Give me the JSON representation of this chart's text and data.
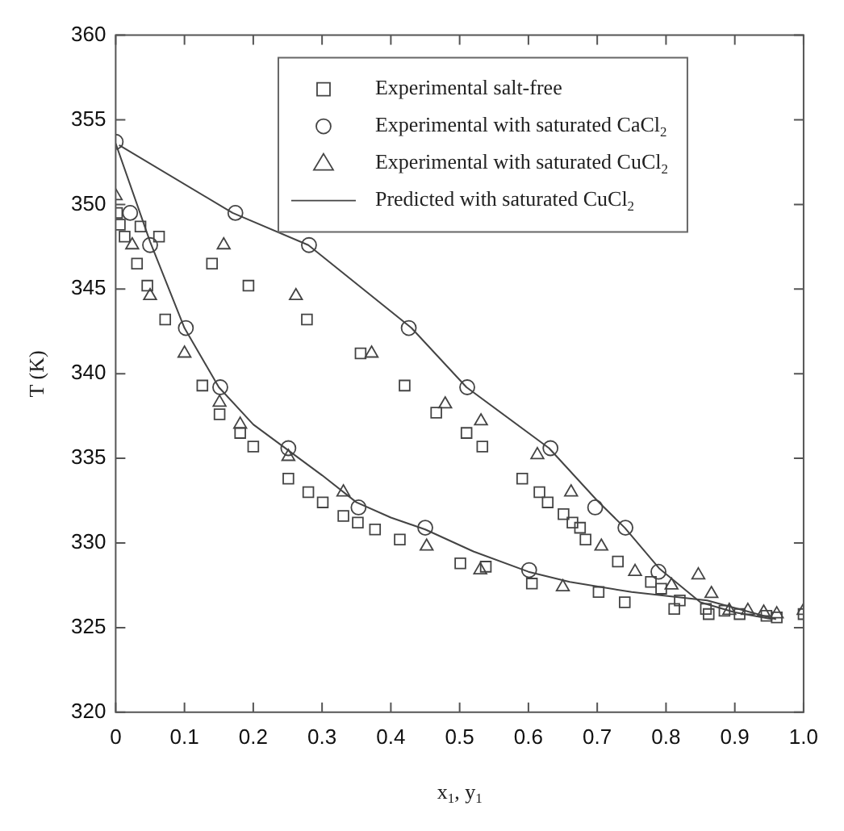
{
  "chart_data": {
    "type": "scatter",
    "xlabel": "x$_{1}$, y$_{1}$",
    "ylabel": "T (K)",
    "xlim": [
      0,
      1
    ],
    "ylim": [
      320,
      360
    ],
    "xticks": [
      0,
      {
        "value": 0.1,
        "label": "0.1"
      },
      {
        "value": 0.2,
        "label": "0.2"
      },
      {
        "value": 0.3,
        "label": "0.3"
      },
      {
        "value": 0.4,
        "label": "0.4"
      },
      {
        "value": 0.5,
        "label": "0.5"
      },
      {
        "value": 0.6,
        "label": "0.6"
      },
      {
        "value": 0.7,
        "label": "0.7"
      },
      {
        "value": 0.8,
        "label": "0.8"
      },
      {
        "value": 0.9,
        "label": "0.9"
      },
      {
        "value": 1,
        "label": "1.0"
      }
    ],
    "yticks": [
      320,
      325,
      330,
      335,
      340,
      345,
      350,
      355,
      360
    ],
    "grid": false,
    "legend": "top right",
    "series": [
      {
        "name": "Experimental salt-free",
        "type": "scatter",
        "marker": "square",
        "color": "#444444",
        "x": [
          0.002,
          0.006,
          0.013,
          0.031,
          0.036,
          0.046,
          0.063,
          0.072,
          0.126,
          0.14,
          0.151,
          0.181,
          0.193,
          0.2,
          0.251,
          0.278,
          0.28,
          0.301,
          0.331,
          0.352,
          0.356,
          0.377,
          0.413,
          0.42,
          0.466,
          0.501,
          0.51,
          0.533,
          0.538,
          0.591,
          0.605,
          0.616,
          0.628,
          0.651,
          0.664,
          0.675,
          0.683,
          0.702,
          0.73,
          0.74,
          0.778,
          0.793,
          0.812,
          0.82,
          0.858,
          0.862,
          0.885,
          0.907,
          0.946,
          0.961,
          1.0
        ],
        "values": [
          349.5,
          348.8,
          348.1,
          346.5,
          348.7,
          345.2,
          348.1,
          343.2,
          339.3,
          346.5,
          337.6,
          336.5,
          345.2,
          335.7,
          333.8,
          343.2,
          333.0,
          332.4,
          331.6,
          331.2,
          341.2,
          330.8,
          330.2,
          339.3,
          337.7,
          328.8,
          336.5,
          335.7,
          328.6,
          333.8,
          327.6,
          333.0,
          332.4,
          331.7,
          331.2,
          330.9,
          330.2,
          327.1,
          328.9,
          326.5,
          327.7,
          327.3,
          326.1,
          326.6,
          326.1,
          325.8,
          326.0,
          325.8,
          325.7,
          325.6,
          325.8
        ]
      },
      {
        "name": "Experimental with saturated CaCl$_{2}$",
        "type": "scatter",
        "marker": "circle",
        "color": "#444444",
        "x": [
          0,
          0.021,
          0.05,
          0.102,
          0.152,
          0.174,
          0.251,
          0.281,
          0.353,
          0.426,
          0.45,
          0.511,
          0.601,
          0.632,
          0.697,
          0.741,
          0.789
        ],
        "values": [
          353.7,
          349.5,
          347.6,
          342.7,
          339.2,
          349.5,
          335.6,
          347.6,
          332.1,
          342.7,
          330.9,
          339.2,
          328.4,
          335.6,
          332.1,
          330.9,
          328.3
        ]
      },
      {
        "name": "Experimental with saturated CuCl$_{2}$",
        "type": "scatter",
        "marker": "triangle",
        "color": "#444444",
        "x": [
          0,
          0.024,
          0.05,
          0.1,
          0.151,
          0.157,
          0.181,
          0.251,
          0.262,
          0.331,
          0.372,
          0.452,
          0.479,
          0.53,
          0.531,
          0.613,
          0.65,
          0.662,
          0.706,
          0.755,
          0.808,
          0.847,
          0.866,
          0.892,
          0.919,
          0.942,
          0.961,
          1.0
        ],
        "values": [
          350.5,
          347.6,
          344.6,
          341.2,
          338.3,
          347.6,
          337.0,
          335.1,
          344.6,
          333.0,
          341.2,
          329.8,
          338.2,
          328.4,
          337.2,
          335.2,
          327.4,
          333.0,
          329.8,
          328.3,
          327.5,
          328.1,
          327.0,
          326.0,
          326.0,
          325.9,
          325.8,
          326.0
        ]
      },
      {
        "name": "Predicted with saturated CuCl$_{2}$",
        "type": "line",
        "marker": "none",
        "line_style": "solid",
        "color": "#444444",
        "x": [
          0,
          0.05,
          0.1,
          0.15,
          0.2,
          0.25,
          0.3,
          0.35,
          0.4,
          0.45,
          0.52,
          0.6,
          0.66,
          0.75,
          0.86,
          0.96
        ],
        "values": [
          353.6,
          347.8,
          342.7,
          339.2,
          337.0,
          335.5,
          334.0,
          332.4,
          331.5,
          330.8,
          329.5,
          328.3,
          327.7,
          327.1,
          326.6,
          325.5
        ]
      },
      {
        "type": "line",
        "marker": "none",
        "line_style": "solid",
        "color": "#444444",
        "x": [
          0.005,
          0.17,
          0.28,
          0.43,
          0.51,
          0.63,
          0.7,
          0.74,
          0.79,
          0.85,
          0.9,
          0.955
        ],
        "values": [
          353.5,
          349.5,
          347.6,
          342.7,
          339.2,
          335.6,
          332.5,
          330.9,
          328.5,
          326.5,
          325.9,
          325.5
        ]
      }
    ]
  }
}
